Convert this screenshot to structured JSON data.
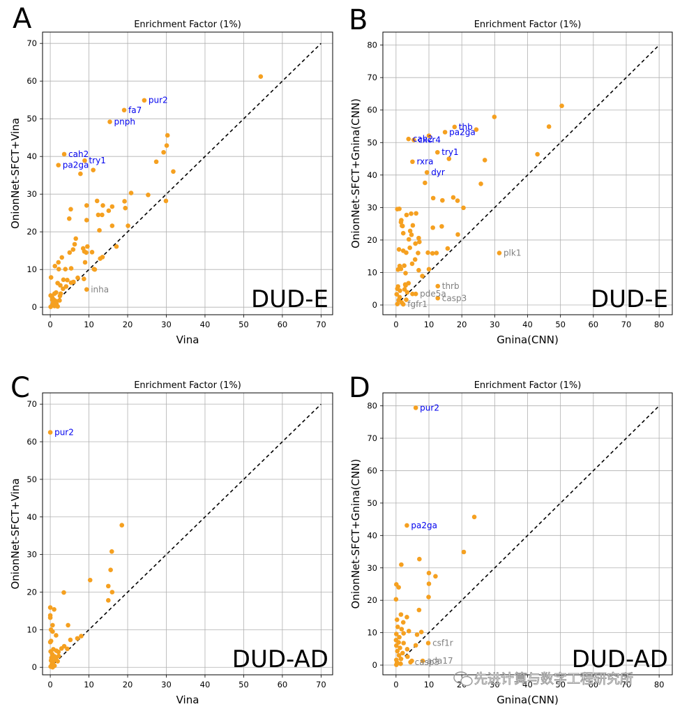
{
  "chart_data": [
    {
      "panel": "A",
      "type": "scatter",
      "title": "Enrichment Factor (1%)",
      "xlabel": "Vina",
      "ylabel": "OnionNet-SFCT+Vina",
      "dataset": "DUD-E",
      "xlim": [
        -2,
        73
      ],
      "ylim": [
        -2,
        73
      ],
      "xticks": [
        0,
        10,
        20,
        30,
        40,
        50,
        60,
        70
      ],
      "yticks": [
        0,
        10,
        20,
        30,
        40,
        50,
        60,
        70
      ],
      "grid": true,
      "diagonal": [
        0,
        70
      ],
      "point_color": "#f5a020",
      "points": [
        [
          54.4,
          61.2
        ],
        [
          24.3,
          54.9
        ],
        [
          19.1,
          52.3
        ],
        [
          15.4,
          49.2
        ],
        [
          3.6,
          40.6
        ],
        [
          8.9,
          38.9
        ],
        [
          2.1,
          37.7
        ],
        [
          7.8,
          35.4
        ],
        [
          11.1,
          36.4
        ],
        [
          30.3,
          45.6
        ],
        [
          30.1,
          42.9
        ],
        [
          29.3,
          41.1
        ],
        [
          27.4,
          38.6
        ],
        [
          31.8,
          36.0
        ],
        [
          20.9,
          30.3
        ],
        [
          25.3,
          29.8
        ],
        [
          29.9,
          28.2
        ],
        [
          12.1,
          28.2
        ],
        [
          19.2,
          28.1
        ],
        [
          13.6,
          27.0
        ],
        [
          9.4,
          27.0
        ],
        [
          16.0,
          26.7
        ],
        [
          19.4,
          26.3
        ],
        [
          5.3,
          26.0
        ],
        [
          15.1,
          25.6
        ],
        [
          12.4,
          24.5
        ],
        [
          13.4,
          24.5
        ],
        [
          4.9,
          23.5
        ],
        [
          9.4,
          23.1
        ],
        [
          20.1,
          21.6
        ],
        [
          16.0,
          21.6
        ],
        [
          12.7,
          20.4
        ],
        [
          6.6,
          18.2
        ],
        [
          17.1,
          16.1
        ],
        [
          6.3,
          16.7
        ],
        [
          8.5,
          15.6
        ],
        [
          9.6,
          16.1
        ],
        [
          5.9,
          15.3
        ],
        [
          8.8,
          14.8
        ],
        [
          9.3,
          14.5
        ],
        [
          10.8,
          14.6
        ],
        [
          5.0,
          14.5
        ],
        [
          13.5,
          13.3
        ],
        [
          2.1,
          11.9
        ],
        [
          9.0,
          11.9
        ],
        [
          12.9,
          12.9
        ],
        [
          3.0,
          13.2
        ],
        [
          1.2,
          10.9
        ],
        [
          2.2,
          10.1
        ],
        [
          3.9,
          10.1
        ],
        [
          5.4,
          10.3
        ],
        [
          11.3,
          10.1
        ],
        [
          11.5,
          10.0
        ],
        [
          0.2,
          7.9
        ],
        [
          7.1,
          7.8
        ],
        [
          8.7,
          7.5
        ],
        [
          3.4,
          7.3
        ],
        [
          4.4,
          7.2
        ],
        [
          6.0,
          6.7
        ],
        [
          5.4,
          6.5
        ],
        [
          1.9,
          6.4
        ],
        [
          2.6,
          5.8
        ],
        [
          4.1,
          5.5
        ],
        [
          9.4,
          4.7
        ],
        [
          3.3,
          4.9
        ],
        [
          1.5,
          3.9
        ],
        [
          2.7,
          3.6
        ],
        [
          0.5,
          2.6
        ],
        [
          1.1,
          3.6
        ],
        [
          0.1,
          3.1
        ],
        [
          2.5,
          3.0
        ],
        [
          0.5,
          2.0
        ],
        [
          1.5,
          1.6
        ],
        [
          0.7,
          1.1
        ],
        [
          0.5,
          0.5
        ],
        [
          1.1,
          0.3
        ],
        [
          1.9,
          0.2
        ],
        [
          0.1,
          0.1
        ],
        [
          0.9,
          2.0
        ],
        [
          2.4,
          1.8
        ],
        [
          1.6,
          0.9
        ]
      ],
      "labels": [
        {
          "text": "pur2",
          "x": 24.3,
          "y": 54.9,
          "color": "#0000ee"
        },
        {
          "text": "fa7",
          "x": 19.1,
          "y": 52.3,
          "color": "#0000ee"
        },
        {
          "text": "pnph",
          "x": 15.4,
          "y": 49.2,
          "color": "#0000ee"
        },
        {
          "text": "cah2",
          "x": 3.6,
          "y": 40.6,
          "color": "#0000ee"
        },
        {
          "text": "try1",
          "x": 8.9,
          "y": 38.9,
          "color": "#0000ee"
        },
        {
          "text": "pa2ga",
          "x": 2.1,
          "y": 37.7,
          "color": "#0000ee"
        },
        {
          "text": "inha",
          "x": 9.4,
          "y": 4.7,
          "color": "#808080"
        }
      ]
    },
    {
      "panel": "B",
      "type": "scatter",
      "title": "Enrichment Factor (1%)",
      "xlabel": "Gnina(CNN)",
      "ylabel": "OnionNet-SFCT+Gnina(CNN)",
      "dataset": "DUD-E",
      "xlim": [
        -4,
        84
      ],
      "ylim": [
        -3,
        84
      ],
      "xticks": [
        0,
        10,
        20,
        30,
        40,
        50,
        60,
        70,
        80
      ],
      "yticks": [
        0,
        10,
        20,
        30,
        40,
        50,
        60,
        70,
        80
      ],
      "grid": true,
      "diagonal": [
        0,
        80
      ],
      "point_color": "#f5a020",
      "points": [
        [
          50.4,
          61.3
        ],
        [
          46.5,
          54.9
        ],
        [
          43.0,
          46.4
        ],
        [
          29.9,
          57.9
        ],
        [
          24.4,
          54.0
        ],
        [
          17.8,
          54.8
        ],
        [
          14.9,
          53.2
        ],
        [
          10.0,
          52.1
        ],
        [
          3.8,
          51.1
        ],
        [
          5.4,
          50.8
        ],
        [
          12.6,
          47.0
        ],
        [
          16.1,
          45.0
        ],
        [
          27.0,
          44.6
        ],
        [
          5.0,
          44.1
        ],
        [
          9.4,
          40.8
        ],
        [
          8.8,
          37.6
        ],
        [
          25.8,
          37.3
        ],
        [
          17.4,
          33.1
        ],
        [
          11.3,
          32.9
        ],
        [
          14.1,
          32.2
        ],
        [
          18.7,
          32.1
        ],
        [
          20.5,
          29.9
        ],
        [
          1.0,
          29.6
        ],
        [
          4.6,
          28.1
        ],
        [
          6.1,
          28.2
        ],
        [
          0.4,
          29.5
        ],
        [
          3.2,
          27.7
        ],
        [
          1.6,
          26.1
        ],
        [
          11.2,
          23.8
        ],
        [
          2.0,
          24.3
        ],
        [
          13.9,
          24.2
        ],
        [
          1.5,
          25.5
        ],
        [
          1.8,
          24.4
        ],
        [
          5.1,
          24.5
        ],
        [
          18.8,
          21.7
        ],
        [
          2.2,
          22.1
        ],
        [
          4.7,
          21.6
        ],
        [
          4.3,
          22.8
        ],
        [
          6.9,
          20.6
        ],
        [
          3.9,
          20.2
        ],
        [
          5.9,
          18.9
        ],
        [
          7.1,
          19.4
        ],
        [
          6.7,
          16.0
        ],
        [
          9.7,
          16.1
        ],
        [
          2.2,
          16.7
        ],
        [
          3.1,
          16.1
        ],
        [
          4.2,
          17.6
        ],
        [
          11.1,
          15.9
        ],
        [
          12.3,
          16.0
        ],
        [
          15.7,
          17.4
        ],
        [
          5.8,
          14.0
        ],
        [
          4.9,
          12.7
        ],
        [
          2.5,
          12.1
        ],
        [
          1.5,
          11.1
        ],
        [
          1.1,
          12.0
        ],
        [
          0.6,
          10.9
        ],
        [
          6.9,
          10.7
        ],
        [
          10.0,
          11.0
        ],
        [
          2.9,
          9.8
        ],
        [
          8.0,
          8.9
        ],
        [
          2.8,
          6.3
        ],
        [
          3.8,
          6.7
        ],
        [
          2.9,
          6.0
        ],
        [
          0.4,
          5.0
        ],
        [
          2.6,
          4.8
        ],
        [
          3.4,
          3.9
        ],
        [
          5.0,
          3.4
        ],
        [
          6.0,
          3.4
        ],
        [
          0.2,
          3.3
        ],
        [
          1.1,
          2.4
        ],
        [
          0.8,
          1.5
        ],
        [
          1.7,
          0.8
        ],
        [
          0.4,
          0.3
        ],
        [
          2.2,
          0.2
        ],
        [
          12.7,
          5.8
        ],
        [
          12.7,
          2.1
        ],
        [
          31.4,
          16.0
        ],
        [
          0.9,
          17.1
        ],
        [
          0.6,
          5.7
        ],
        [
          1.2,
          4.4
        ],
        [
          3.1,
          1.6
        ]
      ],
      "labels": [
        {
          "text": "thb",
          "x": 17.8,
          "y": 54.8,
          "color": "#0000ee"
        },
        {
          "text": "pa2ga",
          "x": 14.9,
          "y": 53.2,
          "color": "#0000ee"
        },
        {
          "text": "cah2",
          "x": 3.8,
          "y": 51.1,
          "color": "#0000ee"
        },
        {
          "text": "cxcr4",
          "x": 5.4,
          "y": 50.8,
          "color": "#0000ee"
        },
        {
          "text": "try1",
          "x": 12.6,
          "y": 47.0,
          "color": "#0000ee"
        },
        {
          "text": "rxra",
          "x": 5.0,
          "y": 44.1,
          "color": "#0000ee"
        },
        {
          "text": "dyr",
          "x": 9.4,
          "y": 40.8,
          "color": "#0000ee"
        },
        {
          "text": "plk1",
          "x": 31.4,
          "y": 16.0,
          "color": "#808080"
        },
        {
          "text": "thrb",
          "x": 12.7,
          "y": 5.8,
          "color": "#808080"
        },
        {
          "text": "pde5a",
          "x": 6.0,
          "y": 3.4,
          "color": "#808080"
        },
        {
          "text": "casp3",
          "x": 12.7,
          "y": 2.1,
          "color": "#808080"
        },
        {
          "text": "fgfr1",
          "x": 2.2,
          "y": 0.2,
          "color": "#808080"
        }
      ]
    },
    {
      "panel": "C",
      "type": "scatter",
      "title": "Enrichment Factor (1%)",
      "xlabel": "Vina",
      "ylabel": "OnionNet-SFCT+Vina",
      "dataset": "DUD-AD",
      "xlim": [
        -2,
        73
      ],
      "ylim": [
        -2,
        73
      ],
      "xticks": [
        0,
        10,
        20,
        30,
        40,
        50,
        60,
        70
      ],
      "yticks": [
        0,
        10,
        20,
        30,
        40,
        50,
        60,
        70
      ],
      "grid": true,
      "diagonal": [
        0,
        70
      ],
      "point_color": "#f5a020",
      "points": [
        [
          0.0,
          62.5
        ],
        [
          18.5,
          37.8
        ],
        [
          15.9,
          30.8
        ],
        [
          15.6,
          25.9
        ],
        [
          10.3,
          23.2
        ],
        [
          15.0,
          21.6
        ],
        [
          16.0,
          20.0
        ],
        [
          3.5,
          19.9
        ],
        [
          15.0,
          17.8
        ],
        [
          0.0,
          15.9
        ],
        [
          1.0,
          15.4
        ],
        [
          0.0,
          13.8
        ],
        [
          0.0,
          13.2
        ],
        [
          4.6,
          11.2
        ],
        [
          0.6,
          11.2
        ],
        [
          0.2,
          10.0
        ],
        [
          0.6,
          9.5
        ],
        [
          1.5,
          8.5
        ],
        [
          8.0,
          8.3
        ],
        [
          7.0,
          7.7
        ],
        [
          5.2,
          7.3
        ],
        [
          0.2,
          7.0
        ],
        [
          3.6,
          5.6
        ],
        [
          2.9,
          5.0
        ],
        [
          4.4,
          4.9
        ],
        [
          0.8,
          4.8
        ],
        [
          1.6,
          4.4
        ],
        [
          2.1,
          4.1
        ],
        [
          0.1,
          4.2
        ],
        [
          0.5,
          3.5
        ],
        [
          0.6,
          3.2
        ],
        [
          1.1,
          2.9
        ],
        [
          2.2,
          3.0
        ],
        [
          0.3,
          2.5
        ],
        [
          1.3,
          2.0
        ],
        [
          0.2,
          1.8
        ],
        [
          0.7,
          1.2
        ],
        [
          1.9,
          1.6
        ],
        [
          0.4,
          0.8
        ],
        [
          1.1,
          0.4
        ],
        [
          0.1,
          0.2
        ],
        [
          0.6,
          0.0
        ],
        [
          0.0,
          6.7
        ],
        [
          1.5,
          2.4
        ]
      ],
      "labels": [
        {
          "text": "pur2",
          "x": 0.0,
          "y": 62.5,
          "color": "#0000ee"
        }
      ]
    },
    {
      "panel": "D",
      "type": "scatter",
      "title": "Enrichment Factor (1%)",
      "xlabel": "Gnina(CNN)",
      "ylabel": "OnionNet-SFCT+Gnina(CNN)",
      "dataset": "DUD-AD",
      "xlim": [
        -4,
        84
      ],
      "ylim": [
        -3,
        84
      ],
      "xticks": [
        0,
        10,
        20,
        30,
        40,
        50,
        60,
        70,
        80
      ],
      "yticks": [
        0,
        10,
        20,
        30,
        40,
        50,
        60,
        70,
        80
      ],
      "grid": true,
      "diagonal": [
        0,
        80
      ],
      "point_color": "#f5a020",
      "points": [
        [
          6.0,
          79.4
        ],
        [
          3.3,
          43.1
        ],
        [
          23.8,
          45.7
        ],
        [
          20.6,
          34.9
        ],
        [
          7.1,
          32.7
        ],
        [
          1.6,
          31.0
        ],
        [
          10.0,
          28.4
        ],
        [
          12.0,
          27.4
        ],
        [
          10.0,
          25.1
        ],
        [
          0.1,
          24.9
        ],
        [
          0.8,
          24.0
        ],
        [
          9.9,
          21.0
        ],
        [
          0.0,
          20.3
        ],
        [
          7.0,
          17.0
        ],
        [
          3.3,
          14.8
        ],
        [
          1.5,
          15.6
        ],
        [
          0.3,
          14.0
        ],
        [
          2.2,
          13.2
        ],
        [
          0.5,
          11.8
        ],
        [
          1.7,
          11.1
        ],
        [
          3.9,
          10.5
        ],
        [
          7.7,
          10.2
        ],
        [
          2.3,
          9.8
        ],
        [
          0.1,
          9.6
        ],
        [
          6.4,
          9.4
        ],
        [
          1.0,
          8.6
        ],
        [
          0.0,
          7.7
        ],
        [
          0.8,
          7.0
        ],
        [
          2.3,
          6.8
        ],
        [
          6.0,
          6.1
        ],
        [
          9.8,
          6.8
        ],
        [
          0.1,
          6.0
        ],
        [
          1.2,
          5.3
        ],
        [
          3.4,
          4.9
        ],
        [
          0.4,
          4.3
        ],
        [
          2.0,
          3.7
        ],
        [
          0.9,
          3.0
        ],
        [
          3.5,
          2.6
        ],
        [
          1.5,
          1.9
        ],
        [
          0.1,
          1.6
        ],
        [
          4.8,
          1.3
        ],
        [
          0.3,
          0.8
        ],
        [
          1.4,
          0.4
        ],
        [
          0.1,
          0.1
        ],
        [
          8.1,
          1.3
        ],
        [
          4.4,
          0.9
        ]
      ],
      "labels": [
        {
          "text": "pur2",
          "x": 6.0,
          "y": 79.4,
          "color": "#0000ee"
        },
        {
          "text": "pa2ga",
          "x": 3.3,
          "y": 43.1,
          "color": "#0000ee"
        },
        {
          "text": "csf1r",
          "x": 9.8,
          "y": 6.8,
          "color": "#808080"
        },
        {
          "text": "casp3",
          "x": 4.4,
          "y": 0.9,
          "color": "#808080"
        },
        {
          "text": "ada17",
          "x": 8.1,
          "y": 1.3,
          "color": "#808080"
        }
      ]
    }
  ],
  "watermark": {
    "text": "先进计算与数字工程研究所"
  }
}
